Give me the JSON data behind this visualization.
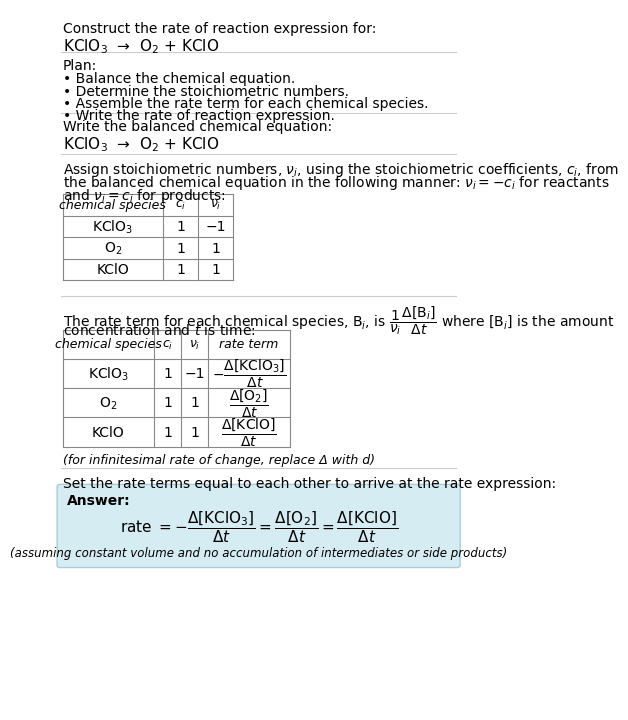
{
  "title_line1": "Construct the rate of reaction expression for:",
  "title_line2": "KClO$_3$  →  O$_2$ + KClO",
  "plan_header": "Plan:",
  "plan_bullets": [
    "• Balance the chemical equation.",
    "• Determine the stoichiometric numbers.",
    "• Assemble the rate term for each chemical species.",
    "• Write the rate of reaction expression."
  ],
  "balanced_header": "Write the balanced chemical equation:",
  "balanced_eq": "KClO$_3$  →  O$_2$ + KClO",
  "assign_text1": "Assign stoichiometric numbers, $\\nu_i$, using the stoichiometric coefficients, $c_i$, from",
  "assign_text2": "the balanced chemical equation in the following manner: $\\nu_i = -c_i$ for reactants",
  "assign_text3": "and $\\nu_i = c_i$ for products:",
  "table1_headers": [
    "chemical species",
    "$c_i$",
    "$\\nu_i$"
  ],
  "table1_rows": [
    [
      "KClO$_3$",
      "1",
      "−1"
    ],
    [
      "O$_2$",
      "1",
      "1"
    ],
    [
      "KClO",
      "1",
      "1"
    ]
  ],
  "rate_text1": "The rate term for each chemical species, B$_i$, is $\\dfrac{1}{\\nu_i}\\dfrac{\\Delta[\\mathrm{B}_i]}{\\Delta t}$ where [B$_i$] is the amount",
  "rate_text2": "concentration and $t$ is time:",
  "table2_headers": [
    "chemical species",
    "$c_i$",
    "$\\nu_i$",
    "rate term"
  ],
  "table2_rows": [
    [
      "KClO$_3$",
      "1",
      "−1",
      "$-\\dfrac{\\Delta[\\mathrm{KClO_3}]}{\\Delta t}$"
    ],
    [
      "O$_2$",
      "1",
      "1",
      "$\\dfrac{\\Delta[\\mathrm{O_2}]}{\\Delta t}$"
    ],
    [
      "KClO",
      "1",
      "1",
      "$\\dfrac{\\Delta[\\mathrm{KClO}]}{\\Delta t}$"
    ]
  ],
  "infinitesimal_note": "(for infinitesimal rate of change, replace Δ with d)",
  "set_equal_text": "Set the rate terms equal to each other to arrive at the rate expression:",
  "answer_label": "Answer:",
  "answer_box_color": "#d6ecf3",
  "rate_expression": "rate $= -\\dfrac{\\Delta[\\mathrm{KClO_3}]}{\\Delta t} = \\dfrac{\\Delta[\\mathrm{O_2}]}{\\Delta t} = \\dfrac{\\Delta[\\mathrm{KClO}]}{\\Delta t}$",
  "assuming_note": "(assuming constant volume and no accumulation of intermediates or side products)",
  "bg_color": "#ffffff",
  "text_color": "#000000",
  "font_size": 10
}
